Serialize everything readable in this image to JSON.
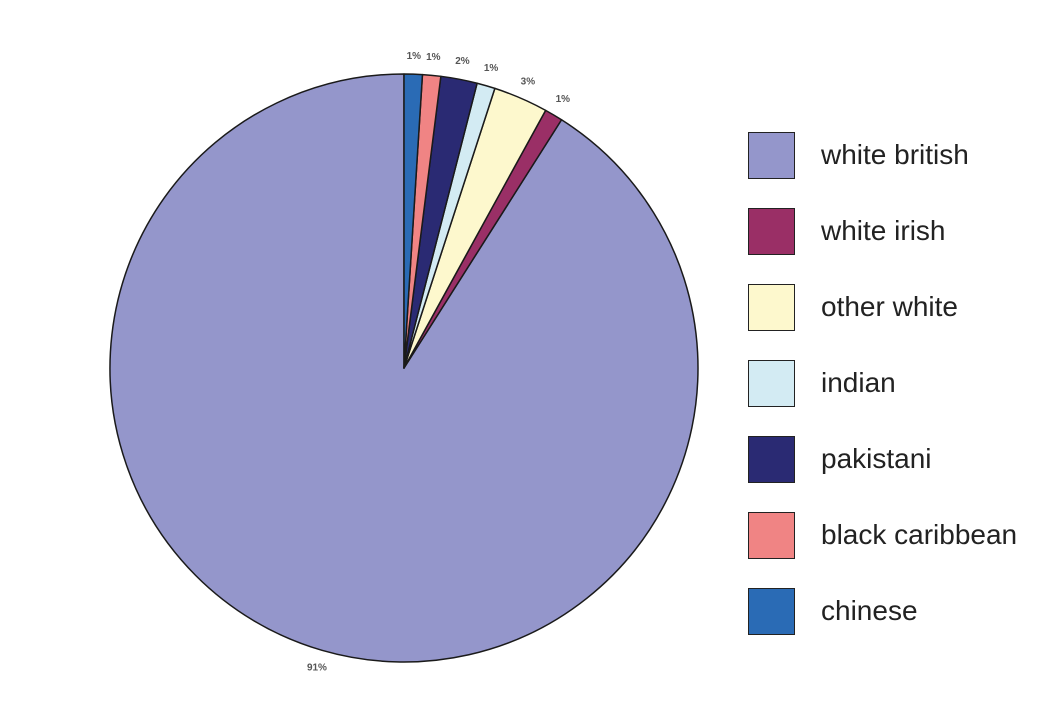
{
  "chart_data": {
    "type": "pie",
    "start_angle_deg": 0,
    "direction": "counterclockwise",
    "slices": [
      {
        "name": "white british",
        "value": 91,
        "label": "91%",
        "color": "#9496cb"
      },
      {
        "name": "white irish",
        "value": 1,
        "label": "1%",
        "color": "#9a2f66"
      },
      {
        "name": "other white",
        "value": 3,
        "label": "3%",
        "color": "#fdf8cd"
      },
      {
        "name": "indian",
        "value": 1,
        "label": "1%",
        "color": "#d3ebf3"
      },
      {
        "name": "pakistani",
        "value": 2,
        "label": "2%",
        "color": "#2a2a73"
      },
      {
        "name": "black caribbean",
        "value": 1,
        "label": "1%",
        "color": "#f08484"
      },
      {
        "name": "chinese",
        "value": 1,
        "label": "1%",
        "color": "#2a6bb5"
      }
    ],
    "legend_position": "right"
  }
}
